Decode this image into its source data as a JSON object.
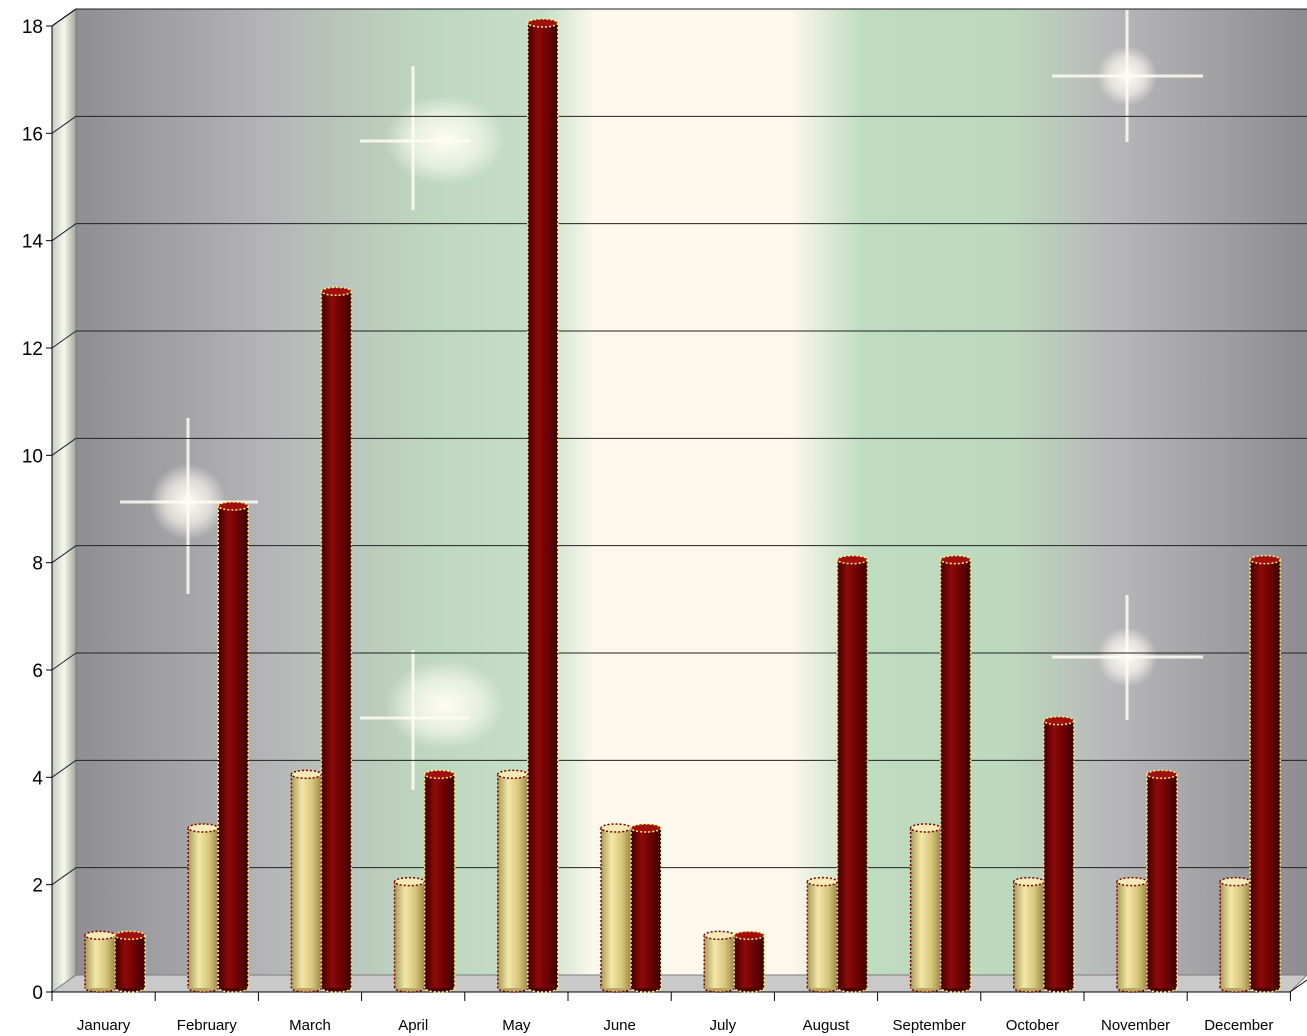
{
  "chart_data": {
    "type": "bar",
    "style": "3d-cylinder",
    "categories": [
      "January",
      "February",
      "March",
      "April",
      "May",
      "June",
      "July",
      "August",
      "September",
      "October",
      "November",
      "December"
    ],
    "series": [
      {
        "values": [
          1,
          3,
          4,
          2,
          4,
          3,
          1,
          2,
          3,
          2,
          2,
          2
        ],
        "color": "#e6d58c"
      },
      {
        "values": [
          1,
          9,
          13,
          4,
          18,
          3,
          1,
          8,
          8,
          5,
          4,
          8
        ],
        "color": "#7a0000"
      }
    ],
    "ylim": [
      0,
      18
    ],
    "yticks": [
      "0",
      "2",
      "4",
      "6",
      "8",
      "10",
      "12",
      "14",
      "16",
      "18"
    ],
    "grid": true,
    "title": "",
    "xlabel": "",
    "ylabel": "",
    "background": [
      "#8f8f93",
      "#bdbdbd",
      "#bcd8bd",
      "#fdf8ec",
      "#bcd8bd",
      "#bdbdbd",
      "#8f8f93"
    ]
  }
}
